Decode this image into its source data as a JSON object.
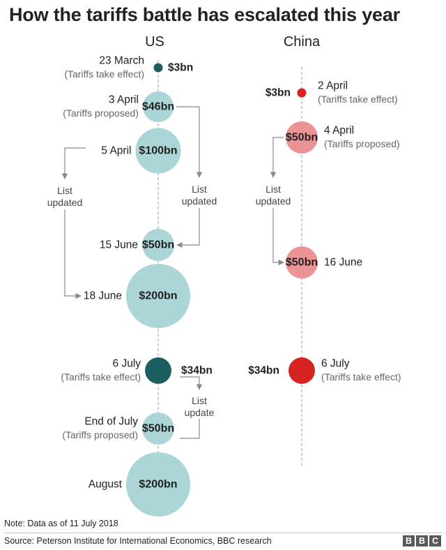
{
  "title": "How the tariffs battle has escalated this year",
  "columns": {
    "us": "US",
    "china": "China"
  },
  "colors": {
    "us_proposed": "#abd5d6",
    "us_effect": "#1d5e5e",
    "china_proposed": "#ec9395",
    "china_effect": "#d72222",
    "axis": "#9b9b9b",
    "arrow": "#8a8a8a",
    "muted_text": "#666666"
  },
  "chart_data": {
    "type": "timeline-bubble",
    "unit": "$bn",
    "us": [
      {
        "date": "23 March",
        "note": "(Tariffs take effect)",
        "value": 3,
        "label": "$3bn",
        "status": "effect"
      },
      {
        "date": "3 April",
        "note": "(Tariffs proposed)",
        "value": 46,
        "label": "$46bn",
        "status": "proposed"
      },
      {
        "date": "5 April",
        "note": "",
        "value": 100,
        "label": "$100bn",
        "status": "proposed"
      },
      {
        "date": "15 June",
        "note": "",
        "value": 50,
        "label": "$50bn",
        "status": "proposed"
      },
      {
        "date": "18 June",
        "note": "",
        "value": 200,
        "label": "$200bn",
        "status": "proposed"
      },
      {
        "date": "6 July",
        "note": "(Tariffs take effect)",
        "value": 34,
        "label": "$34bn",
        "status": "effect"
      },
      {
        "date": "End of July",
        "note": "(Tariffs proposed)",
        "value": 50,
        "label": "$50bn",
        "status": "proposed"
      },
      {
        "date": "August",
        "note": "",
        "value": 200,
        "label": "$200bn",
        "status": "proposed"
      }
    ],
    "china": [
      {
        "date": "2 April",
        "note": "(Tariffs take effect)",
        "value": 3,
        "label": "$3bn",
        "status": "effect"
      },
      {
        "date": "4 April",
        "note": "(Tariffs proposed)",
        "value": 50,
        "label": "$50bn",
        "status": "proposed"
      },
      {
        "date": "16 June",
        "note": "",
        "value": 50,
        "label": "$50bn",
        "status": "proposed"
      },
      {
        "date": "6 July",
        "note": "(Tariffs take effect)",
        "value": 34,
        "label": "$34bn",
        "status": "effect"
      }
    ],
    "annotations": {
      "us_list_updated": [
        "List",
        "updated"
      ],
      "us_list_update": [
        "List",
        "update"
      ],
      "china_list_updated": [
        "List",
        "updated"
      ]
    }
  },
  "footer": {
    "note": "Note: Data as of 11 July 2018",
    "source": "Source: Peterson Institute for International Economics, BBC research",
    "logo": [
      "B",
      "B",
      "C"
    ]
  }
}
